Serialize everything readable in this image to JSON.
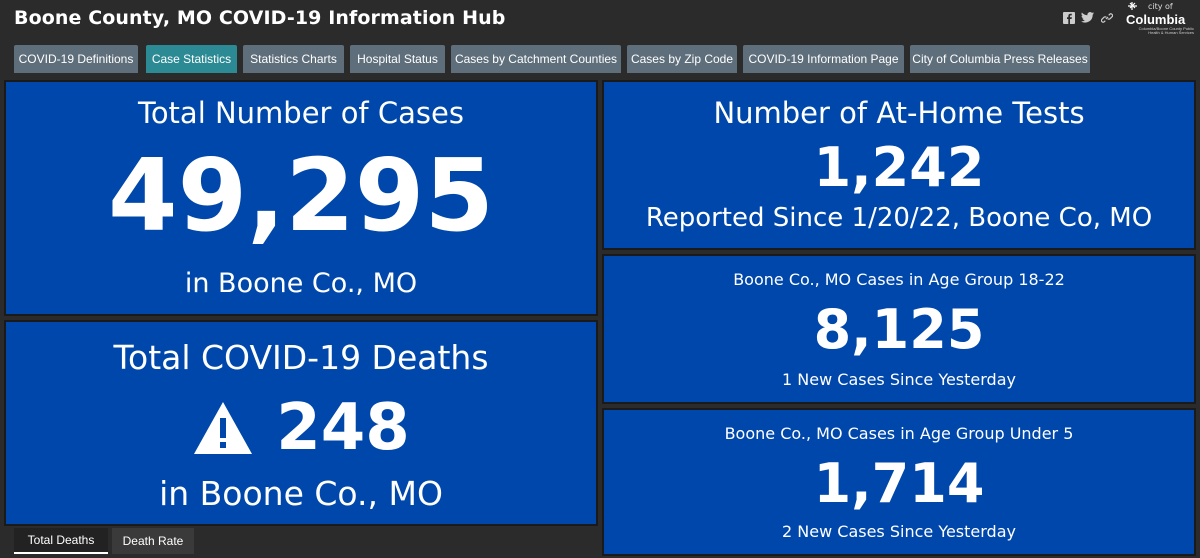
{
  "app": {
    "title": "Boone County, MO COVID-19 Information Hub"
  },
  "header_icons": [
    "facebook-icon",
    "twitter-icon",
    "link-icon"
  ],
  "logo": {
    "city_of": "city of",
    "name": "Columbia",
    "subtitle": "Columbia/Boone County Public Health & Human Services"
  },
  "tabs": [
    {
      "label": "COVID-19 Definitions",
      "active": false
    },
    {
      "label": "Case Statistics",
      "active": true
    },
    {
      "label": "Statistics Charts",
      "active": false
    },
    {
      "label": "Hospital Status",
      "active": false
    },
    {
      "label": "Cases by Catchment Counties",
      "active": false
    },
    {
      "label": "Cases by Zip Code",
      "active": false
    },
    {
      "label": "COVID-19 Information Page",
      "active": false
    },
    {
      "label": "City of Columbia Press Releases",
      "active": false
    }
  ],
  "total_cases": {
    "title": "Total Number of Cases",
    "value": "49,295",
    "subtitle": "in Boone Co., MO"
  },
  "total_deaths": {
    "title": "Total COVID-19 Deaths",
    "value": "248",
    "icon": "warning-icon",
    "subtitle": "in Boone Co., MO"
  },
  "at_home_tests": {
    "title": "Number of At-Home Tests",
    "value": "1,242",
    "subtitle": "Reported Since 1/20/22, Boone Co, MO"
  },
  "age_18_22": {
    "title": "Boone Co., MO Cases in Age Group 18-22",
    "value": "8,125",
    "subtitle": "1 New Cases Since Yesterday"
  },
  "age_under_5": {
    "title": "Boone Co., MO Cases in Age Group Under 5",
    "value": "1,714",
    "subtitle": "2 New Cases Since Yesterday"
  },
  "bottom_tabs": [
    {
      "label": "Total Deaths",
      "active": true
    },
    {
      "label": "Death Rate",
      "active": false
    }
  ],
  "colors": {
    "panel_bg": "#0047ab",
    "page_bg": "#2b2b2b",
    "tab_bg": "#5e6e7b",
    "tab_active": "#2c8a94"
  }
}
